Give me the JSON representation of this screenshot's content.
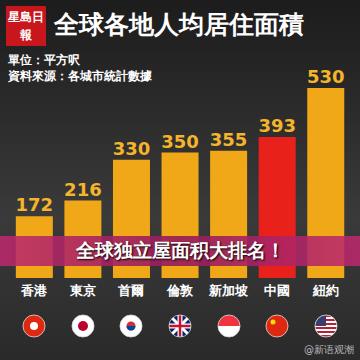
{
  "logo": "星島日報",
  "watermark": "@新语观潮",
  "banner": "全球独立屋面积大排名！",
  "chart_data": {
    "type": "bar",
    "title": "全球各地人均居住面積",
    "subtitle": [
      "單位：平方呎",
      "資料來源：各城市統計數據"
    ],
    "categories": [
      "香港",
      "東京",
      "首爾",
      "倫敦",
      "新加坡",
      "中國",
      "紐約"
    ],
    "values": [
      172,
      216,
      330,
      350,
      355,
      393,
      530
    ],
    "colors": [
      "#f0a818",
      "#f0a818",
      "#f0a818",
      "#f0a818",
      "#f0a818",
      "#e8221b",
      "#f0a818"
    ],
    "data_labels": true,
    "tick_labels": "x",
    "grid": false
  }
}
